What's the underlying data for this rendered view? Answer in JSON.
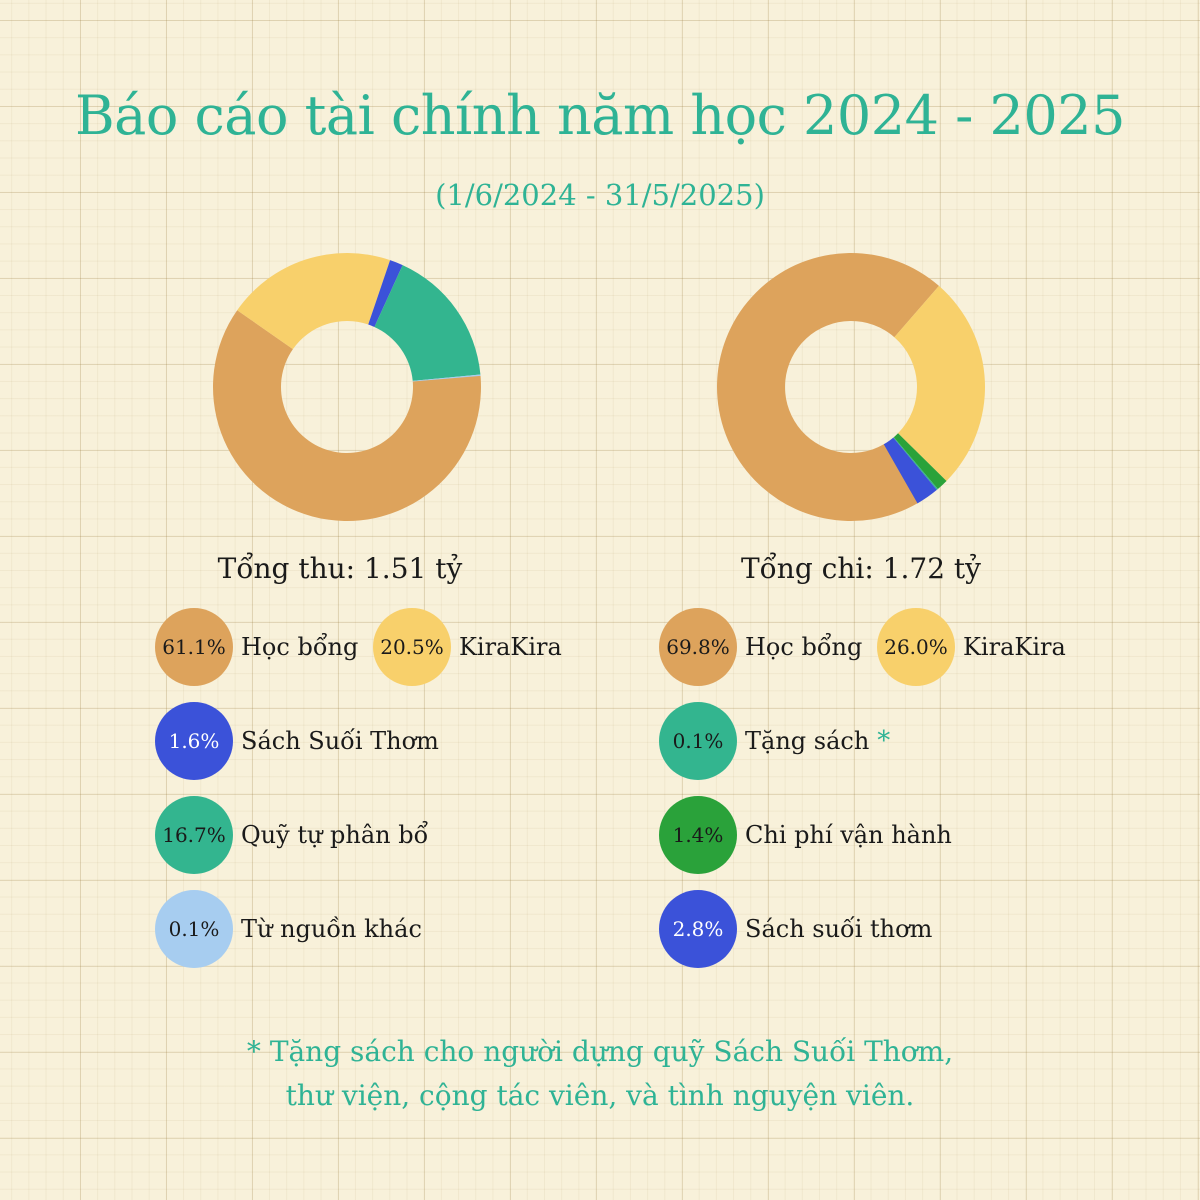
{
  "title": "Báo cáo tài chính năm học 2024 - 2025",
  "subtitle": "(1/6/2024 - 31/5/2025)",
  "chart_data": [
    {
      "type": "pie",
      "total_label": "Tổng thu: 1.51 tỷ",
      "slices": [
        {
          "name": "Học bổng",
          "value": 61.1,
          "label": "61.1%",
          "color": "#dda35c"
        },
        {
          "name": "KiraKira",
          "value": 20.5,
          "label": "20.5%",
          "color": "#f8d06b"
        },
        {
          "name": "Sách Suối Thơm",
          "value": 1.6,
          "label": "1.6%",
          "color": "#3b52d9"
        },
        {
          "name": "Quỹ tự phân bổ",
          "value": 16.7,
          "label": "16.7%",
          "color": "#33b58f"
        },
        {
          "name": "Từ nguồn khác",
          "value": 0.1,
          "label": "0.1%",
          "color": "#a7cdf0"
        }
      ]
    },
    {
      "type": "pie",
      "total_label": "Tổng chi: 1.72 tỷ",
      "slices": [
        {
          "name": "Học bổng",
          "value": 69.8,
          "label": "69.8%",
          "color": "#dda35c"
        },
        {
          "name": "KiraKira",
          "value": 26.0,
          "label": "26.0%",
          "color": "#f8d06b"
        },
        {
          "name": "Tặng sách",
          "value": 0.1,
          "label": "0.1%",
          "color": "#33b58f"
        },
        {
          "name": "Chi phí vận hành",
          "value": 1.4,
          "label": "1.4%",
          "color": "#2aa23a"
        },
        {
          "name": "Sách suối thơm",
          "value": 2.8,
          "label": "2.8%",
          "color": "#3b52d9"
        }
      ]
    }
  ],
  "footnote": {
    "star": "*",
    "line1": "Tặng sách cho người dựng quỹ Sách Suối Thơm,",
    "line2": "thư viện, cộng tác viên, và tình nguyện viên."
  }
}
